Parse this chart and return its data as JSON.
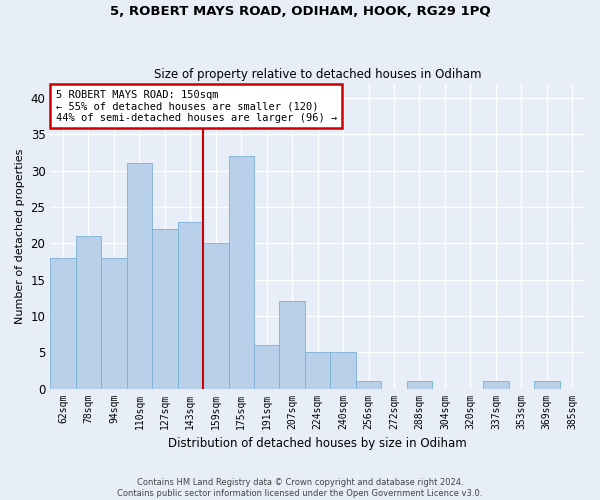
{
  "title1": "5, ROBERT MAYS ROAD, ODIHAM, HOOK, RG29 1PQ",
  "title2": "Size of property relative to detached houses in Odiham",
  "xlabel": "Distribution of detached houses by size in Odiham",
  "ylabel": "Number of detached properties",
  "categories": [
    "62sqm",
    "78sqm",
    "94sqm",
    "110sqm",
    "127sqm",
    "143sqm",
    "159sqm",
    "175sqm",
    "191sqm",
    "207sqm",
    "224sqm",
    "240sqm",
    "256sqm",
    "272sqm",
    "288sqm",
    "304sqm",
    "320sqm",
    "337sqm",
    "353sqm",
    "369sqm",
    "385sqm"
  ],
  "values": [
    18,
    21,
    18,
    31,
    22,
    23,
    20,
    32,
    6,
    12,
    5,
    5,
    1,
    0,
    1,
    0,
    0,
    1,
    0,
    1,
    0
  ],
  "bar_color": "#b8d0ea",
  "bar_edge_color": "#7aafd4",
  "annotation_text": "5 ROBERT MAYS ROAD: 150sqm\n← 55% of detached houses are smaller (120)\n44% of semi-detached houses are larger (96) →",
  "annotation_box_color": "#ffffff",
  "annotation_box_edge_color": "#cc0000",
  "vline_color": "#cc0000",
  "ylim": [
    0,
    42
  ],
  "yticks": [
    0,
    5,
    10,
    15,
    20,
    25,
    30,
    35,
    40
  ],
  "footer1": "Contains HM Land Registry data © Crown copyright and database right 2024.",
  "footer2": "Contains public sector information licensed under the Open Government Licence v3.0.",
  "bg_color": "#e8eef8",
  "plot_bg_color": "#e8eef8",
  "grid_color": "#ffffff",
  "title1_fontsize": 9.5,
  "title2_fontsize": 8.5,
  "vline_index": 6
}
